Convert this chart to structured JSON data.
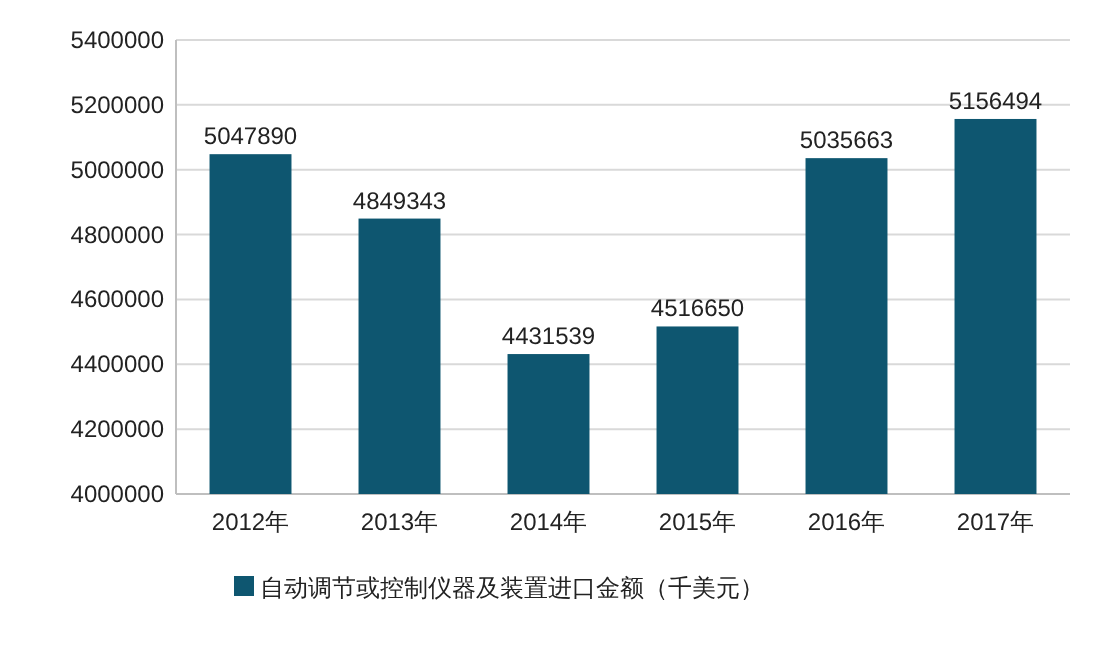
{
  "chart_data": {
    "type": "bar",
    "categories": [
      "2012年",
      "2013年",
      "2014年",
      "2015年",
      "2016年",
      "2017年"
    ],
    "series": [
      {
        "name": "自动调节或控制仪器及装置进口金额（千美元）",
        "color": "#0e5670",
        "values": [
          5047890,
          4849343,
          4431539,
          4516650,
          5035663,
          5156494
        ]
      }
    ],
    "ylim": [
      4000000,
      5400000
    ],
    "yticks": [
      4000000,
      4200000,
      4400000,
      4600000,
      4800000,
      5000000,
      5200000,
      5400000
    ],
    "grid": "y",
    "legend": "bottom",
    "data_labels": true
  }
}
